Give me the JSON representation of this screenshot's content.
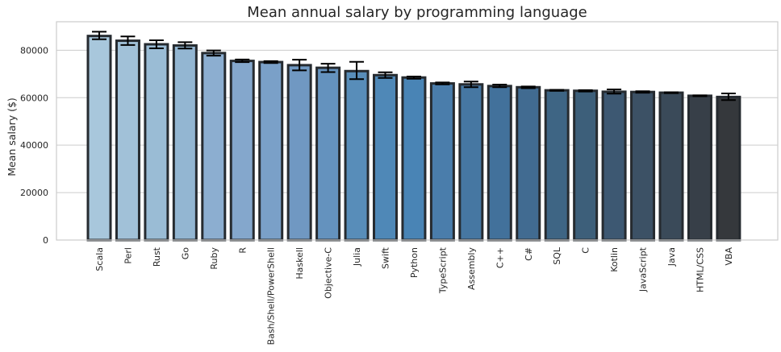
{
  "chart_data": {
    "type": "bar",
    "title": "Mean annual salary by programming language",
    "xlabel": "",
    "ylabel": "Mean salary ($)",
    "ylim": [
      0,
      92000
    ],
    "yticks": [
      0,
      20000,
      40000,
      60000,
      80000
    ],
    "grid": "y",
    "legend": "none",
    "categories": [
      "Scala",
      "Perl",
      "Rust",
      "Go",
      "Ruby",
      "R",
      "Bash/Shell/PowerShell",
      "Haskell",
      "Objective-C",
      "Julia",
      "Swift",
      "Python",
      "TypeScript",
      "Assembly",
      "C++",
      "C#",
      "SQL",
      "C",
      "Kotlin",
      "JavaScript",
      "Java",
      "HTML/CSS",
      "VBA"
    ],
    "values": [
      86000,
      84000,
      82500,
      82000,
      78800,
      75500,
      75000,
      73700,
      72600,
      71200,
      69500,
      68500,
      66000,
      65600,
      64900,
      64400,
      63100,
      62900,
      62500,
      62400,
      62100,
      60800,
      60300
    ],
    "error_low": [
      84600,
      82200,
      80800,
      80700,
      77700,
      75000,
      74600,
      71500,
      70800,
      67800,
      68300,
      68000,
      65600,
      64400,
      64400,
      64000,
      62900,
      62600,
      61700,
      62100,
      61900,
      60600,
      59000
    ],
    "error_high": [
      87800,
      85800,
      84200,
      83400,
      79900,
      76100,
      75400,
      76000,
      74300,
      75100,
      70700,
      68900,
      66400,
      66800,
      65500,
      64700,
      63300,
      63200,
      63500,
      62700,
      62300,
      61000,
      61800
    ],
    "colors": [
      "#a8c7dc",
      "#a1c1d8",
      "#9abcd5",
      "#93b6d2",
      "#8caed0",
      "#84a7cc",
      "#7aa0c8",
      "#7098c2",
      "#6492be",
      "#588db9",
      "#4f88b7",
      "#4984b5",
      "#4a7dab",
      "#4677a2",
      "#42719b",
      "#416b91",
      "#3e6584",
      "#3d5f7a",
      "#3d5872",
      "#3c5165",
      "#3a4a59",
      "#373f48",
      "#35383c"
    ]
  }
}
